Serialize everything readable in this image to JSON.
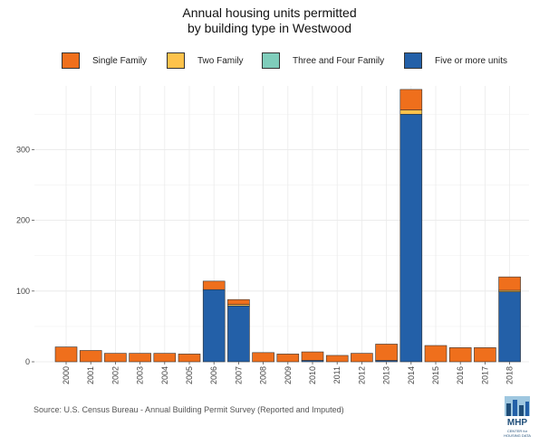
{
  "chart_data": {
    "type": "bar",
    "stacked": true,
    "title_line1": "Annual housing units permitted",
    "title_line2": "by building type in  Westwood",
    "source": "Source: U.S. Census Bureau - Annual Building Permit Survey (Reported and Imputed)",
    "categories": [
      "2000",
      "2001",
      "2002",
      "2003",
      "2004",
      "2005",
      "2006",
      "2007",
      "2008",
      "2009",
      "2010",
      "2011",
      "2012",
      "2013",
      "2014",
      "2015",
      "2016",
      "2017",
      "2018"
    ],
    "series": [
      {
        "name": "Five or more units",
        "color": "#2360a8",
        "values": [
          0,
          0,
          0,
          0,
          0,
          0,
          102,
          79,
          0,
          0,
          2,
          0,
          0,
          2,
          350,
          0,
          0,
          0,
          99
        ]
      },
      {
        "name": "Three and Four Family",
        "color": "#7fcdbb",
        "values": [
          0,
          0,
          0,
          0,
          0,
          0,
          0,
          0,
          0,
          0,
          0,
          0,
          0,
          0,
          0,
          0,
          0,
          0,
          0
        ]
      },
      {
        "name": "Two Family",
        "color": "#fdc24b",
        "values": [
          0,
          0,
          0,
          0,
          0,
          0,
          0,
          2,
          0,
          0,
          0,
          0,
          0,
          0,
          6,
          0,
          0,
          0,
          2
        ]
      },
      {
        "name": "Single Family",
        "color": "#ef6f1c",
        "values": [
          21,
          16,
          12,
          12,
          12,
          11,
          12,
          7,
          13,
          11,
          12,
          9,
          12,
          23,
          29,
          23,
          20,
          20,
          19
        ]
      }
    ],
    "legend_order": [
      "Single Family",
      "Two Family",
      "Three and Four Family",
      "Five or more units"
    ],
    "y_ticks": [
      0,
      100,
      200,
      300
    ],
    "ylim": [
      0,
      390
    ],
    "grid": true,
    "legend_position": "top"
  },
  "logo": {
    "text": "MHP",
    "sub1": "CENTER for",
    "sub2": "HOUSING DATA"
  }
}
